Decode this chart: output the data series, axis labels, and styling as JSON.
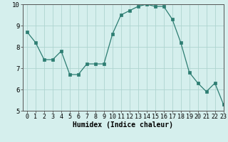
{
  "x": [
    0,
    1,
    2,
    3,
    4,
    5,
    6,
    7,
    8,
    9,
    10,
    11,
    12,
    13,
    14,
    15,
    16,
    17,
    18,
    19,
    20,
    21,
    22,
    23
  ],
  "y": [
    8.7,
    8.2,
    7.4,
    7.4,
    7.8,
    6.7,
    6.7,
    7.2,
    7.2,
    7.2,
    8.6,
    9.5,
    9.7,
    9.9,
    10.0,
    9.9,
    9.9,
    9.3,
    8.2,
    6.8,
    6.3,
    5.9,
    6.3,
    5.3
  ],
  "xlabel": "Humidex (Indice chaleur)",
  "ylim": [
    5,
    10
  ],
  "xlim": [
    -0.5,
    23
  ],
  "yticks": [
    5,
    6,
    7,
    8,
    9,
    10
  ],
  "xticks": [
    0,
    1,
    2,
    3,
    4,
    5,
    6,
    7,
    8,
    9,
    10,
    11,
    12,
    13,
    14,
    15,
    16,
    17,
    18,
    19,
    20,
    21,
    22,
    23
  ],
  "line_color": "#2d7d72",
  "marker_color": "#2d7d72",
  "bg_color": "#d5efed",
  "grid_color_major": "#aed4d0",
  "grid_color_minor": "#c8e6e3",
  "axis_color": "#555555",
  "xlabel_fontsize": 7,
  "tick_fontsize": 6
}
